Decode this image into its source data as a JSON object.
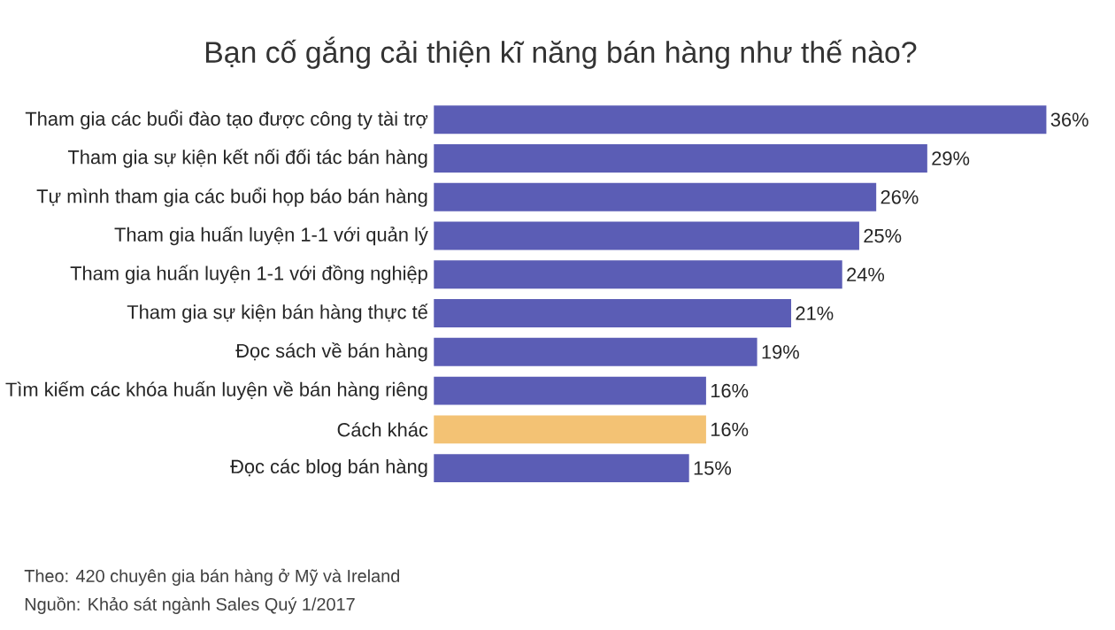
{
  "chart_data": {
    "type": "bar",
    "orientation": "horizontal",
    "title": "Bạn cố gắng cải thiện kĩ năng bán hàng như thế nào?",
    "categories": [
      "Tham gia các buổi đào tạo được công ty tài trợ",
      "Tham gia sự kiện kết nối đối tác bán hàng",
      "Tự mình tham gia các buổi họp báo bán hàng",
      "Tham gia huấn luyện 1-1 với quản lý",
      "Tham gia huấn luyện 1-1 với đồng nghiệp",
      "Tham gia sự kiện bán hàng thực tế",
      "Đọc sách về bán hàng",
      "Tìm kiếm các khóa huấn luyện về bán hàng riêng",
      "Cách khác",
      "Đọc các blog bán hàng"
    ],
    "values": [
      36,
      29,
      26,
      25,
      24,
      21,
      19,
      16,
      16,
      15
    ],
    "value_labels": [
      "36%",
      "29%",
      "26%",
      "25%",
      "24%",
      "21%",
      "19%",
      "16%",
      "16%",
      "15%"
    ],
    "colors": [
      "#5b5db5",
      "#5b5db5",
      "#5b5db5",
      "#5b5db5",
      "#5b5db5",
      "#5b5db5",
      "#5b5db5",
      "#5b5db5",
      "#f3c274",
      "#5b5db5"
    ],
    "annotations": [
      "Theo: 420 chuyên gia bán hàng ở Mỹ và Ireland",
      "Nguồn: Khảo sát ngành Sales Quý 1/2017"
    ]
  }
}
